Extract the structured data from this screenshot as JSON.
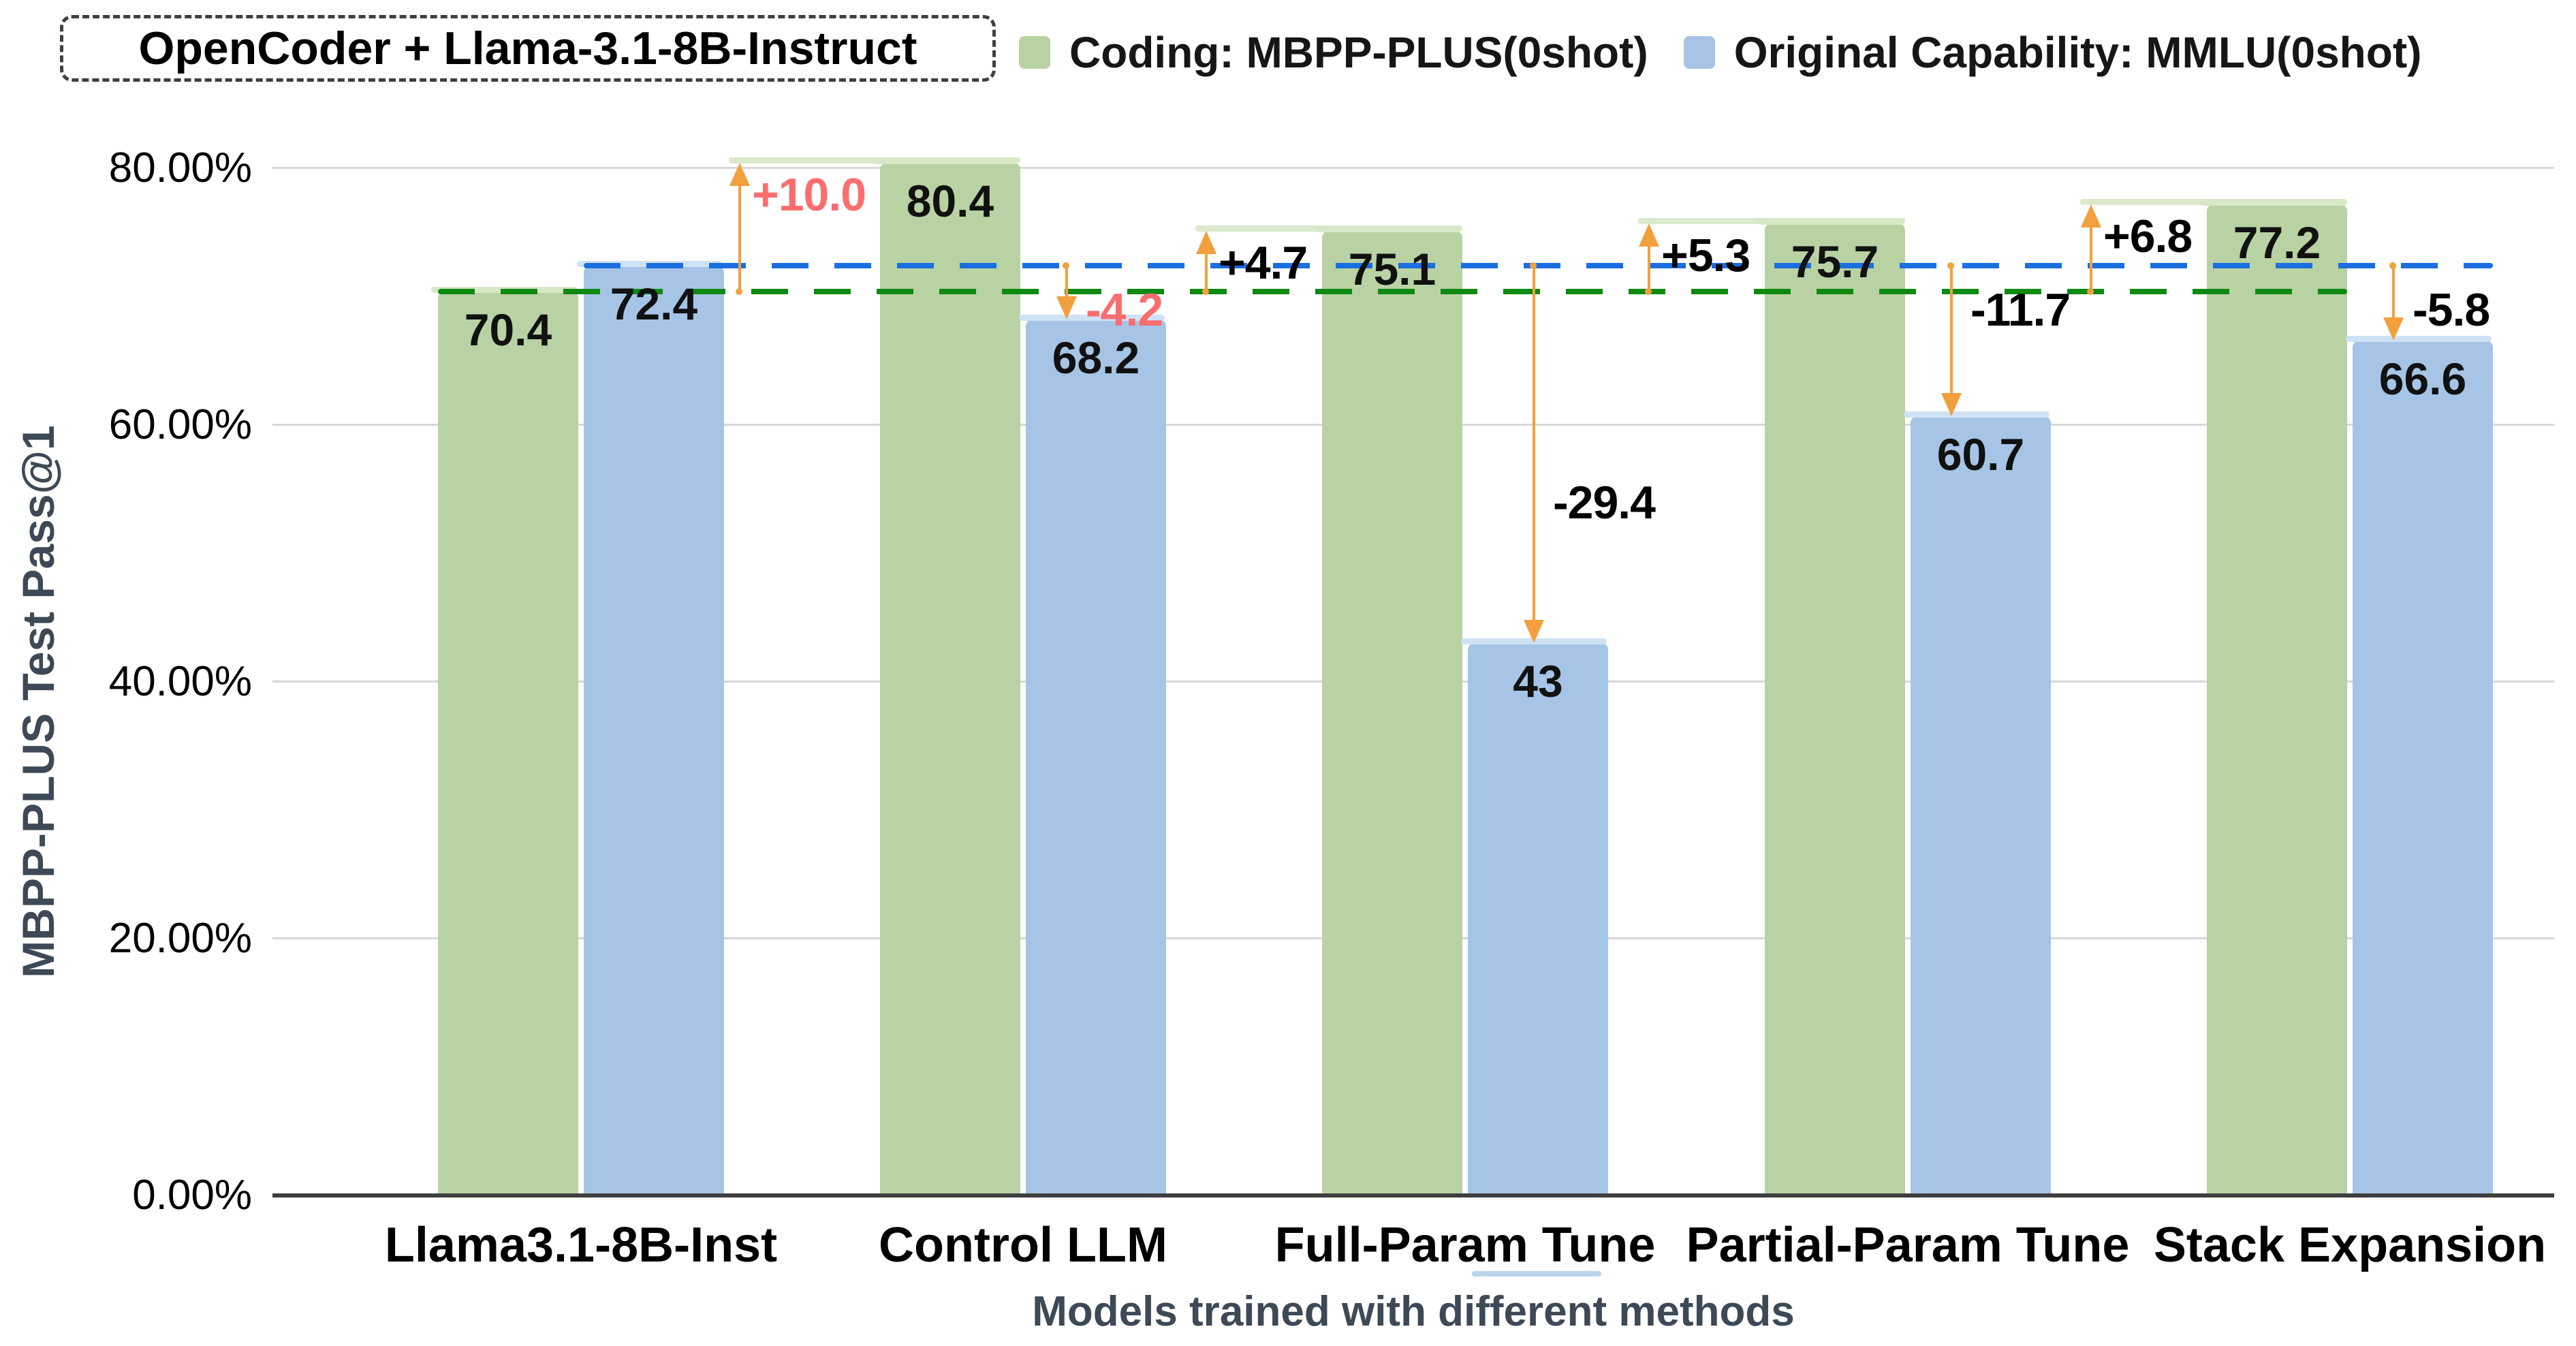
{
  "header": {
    "model_tag": "OpenCoder + Llama-3.1-8B-Instruct",
    "legend": [
      {
        "label": "Coding: MBPP-PLUS(0shot)",
        "color": "#b9d2a4"
      },
      {
        "label": "Original Capability: MMLU(0shot)",
        "color": "#a6c5e6"
      }
    ]
  },
  "colors": {
    "bar_green": "#b9d2a4",
    "bar_blue": "#a6c5e6",
    "cap_green": "#d8e7c6",
    "cap_blue": "#cfe2f5",
    "baseline_green": "#0e8a12",
    "baseline_blue": "#1a6fe0",
    "arrow_orange": "#f2a03d",
    "annotation_red": "#fa6d6f",
    "annotation_black": "#000000",
    "axis_text": "#3d4956",
    "gridline": "#d7d7d7"
  },
  "chart_data": {
    "type": "bar",
    "title": "OpenCoder + Llama-3.1-8B-Instruct",
    "xlabel": "Models trained with different methods",
    "ylabel": "MBPP-PLUS Test Pass@1",
    "ylim": [
      0,
      84
    ],
    "grid": true,
    "legend_position": "top",
    "ytick_values": [
      0,
      20,
      40,
      60,
      80
    ],
    "ytick_labels": [
      "0.00%",
      "20.00%",
      "40.00%",
      "60.00%",
      "80.00%"
    ],
    "categories": [
      "Llama3.1-8B-Inst",
      "Control LLM",
      "Full-Param Tune",
      "Partial-Param Tune",
      "Stack Expansion"
    ],
    "underlined_category": "Full-Param Tune",
    "series": [
      {
        "name": "Coding: MBPP-PLUS(0shot)",
        "color": "#b9d2a4",
        "values": [
          70.4,
          80.4,
          75.1,
          75.7,
          77.2
        ]
      },
      {
        "name": "Original Capability: MMLU(0shot)",
        "color": "#a6c5e6",
        "values": [
          72.4,
          68.2,
          43,
          60.7,
          66.6
        ]
      }
    ],
    "baselines": [
      {
        "id": "mbpp",
        "label": "Llama3.1-8B-Inst MBPP-PLUS baseline",
        "value": 70.4,
        "color": "#0e8a12",
        "style": "dashed"
      },
      {
        "id": "mmlu",
        "label": "Llama3.1-8B-Inst MMLU baseline",
        "value": 72.4,
        "color": "#1a6fe0",
        "style": "dashed"
      }
    ],
    "annotations": [
      {
        "label": "+10.0",
        "category": "Control LLM",
        "direction": "up",
        "from": 70.4,
        "to": 80.4,
        "emphasis": "red"
      },
      {
        "label": "-4.2",
        "category": "Control LLM",
        "direction": "down",
        "from": 72.4,
        "to": 68.2,
        "emphasis": "red"
      },
      {
        "label": "+4.7",
        "category": "Full-Param Tune",
        "direction": "up",
        "from": 70.4,
        "to": 75.1,
        "emphasis": "black"
      },
      {
        "label": "-29.4",
        "category": "Full-Param Tune",
        "direction": "down",
        "from": 72.4,
        "to": 43,
        "emphasis": "black"
      },
      {
        "label": "+5.3",
        "category": "Partial-Param Tune",
        "direction": "up",
        "from": 70.4,
        "to": 75.7,
        "emphasis": "black"
      },
      {
        "label": "-11.7",
        "category": "Partial-Param Tune",
        "direction": "down",
        "from": 72.4,
        "to": 60.7,
        "emphasis": "black"
      },
      {
        "label": "+6.8",
        "category": "Stack Expansion",
        "direction": "up",
        "from": 70.4,
        "to": 77.2,
        "emphasis": "black"
      },
      {
        "label": "-5.8",
        "category": "Stack Expansion",
        "direction": "down",
        "from": 72.4,
        "to": 66.6,
        "emphasis": "black"
      }
    ]
  }
}
